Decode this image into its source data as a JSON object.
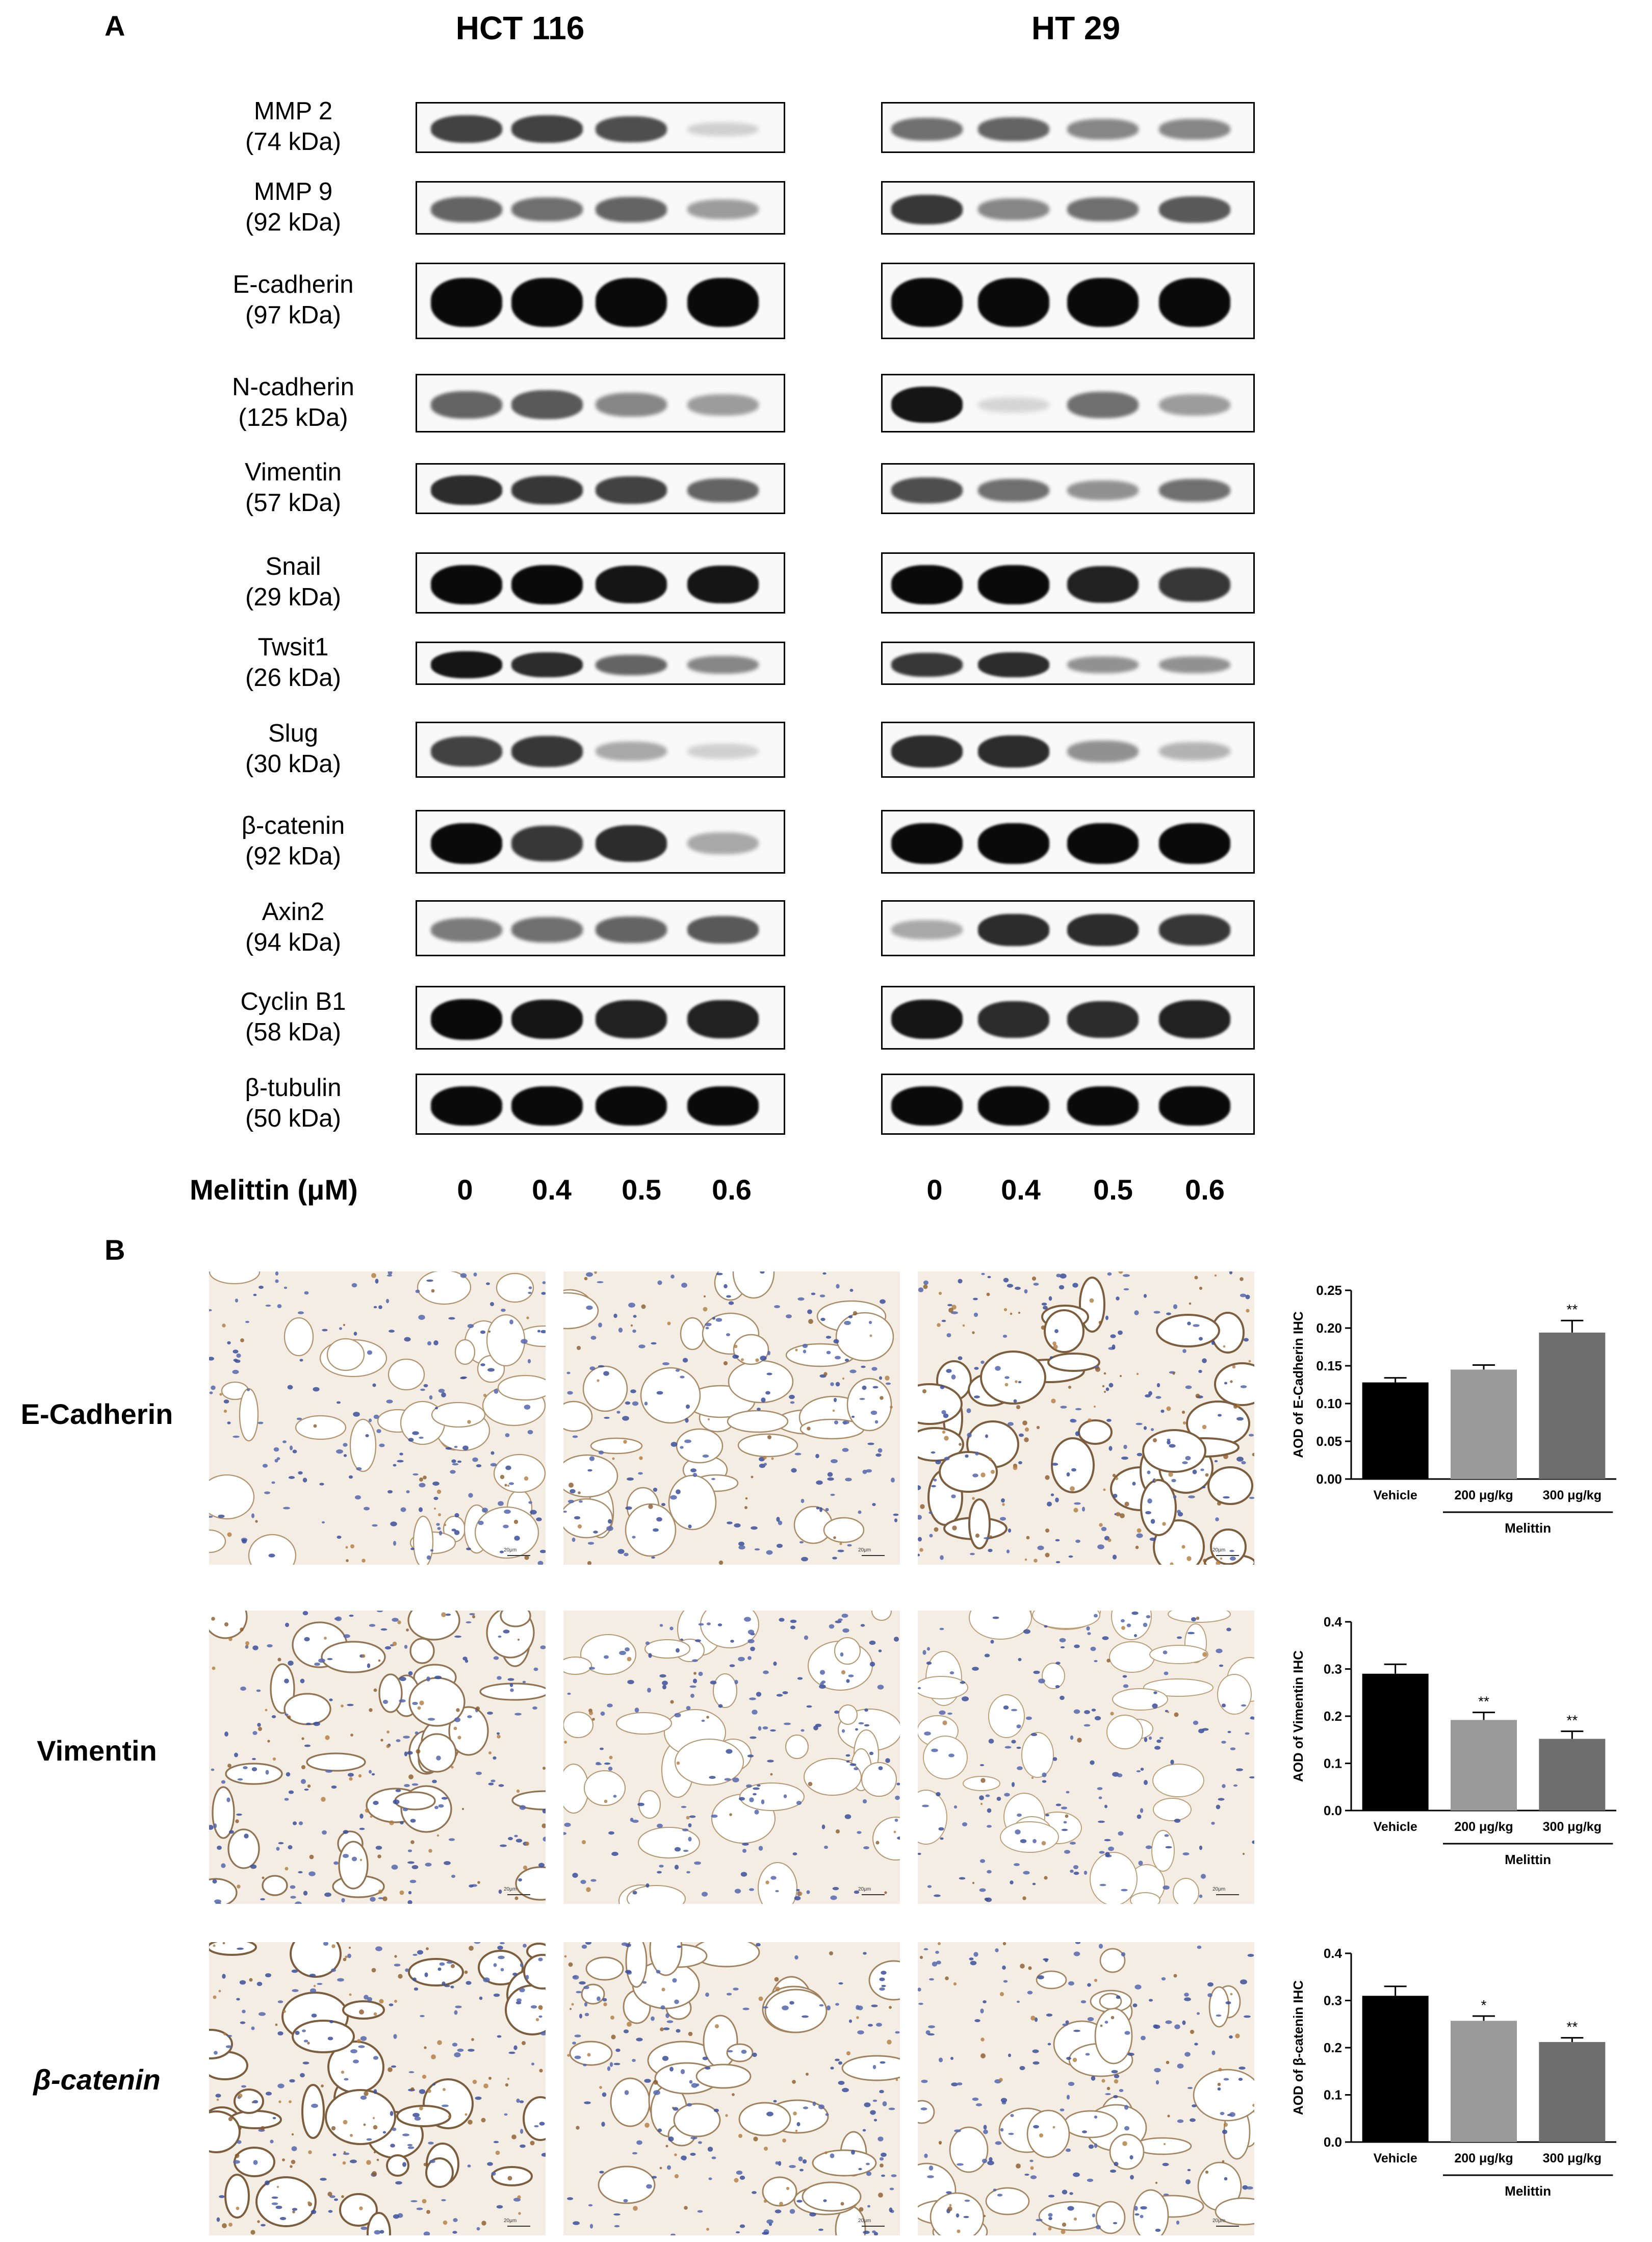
{
  "panel_a": {
    "letter": "A",
    "cell_lines": [
      "HCT 116",
      "HT 29"
    ],
    "treatment_label": "Melittin (μM)",
    "doses": [
      "0",
      "0.4",
      "0.5",
      "0.6"
    ],
    "rows": [
      {
        "name": "MMP 2",
        "kda": "(74 kDa)",
        "hct": [
          0.75,
          0.75,
          0.7,
          0.12
        ],
        "ht": [
          0.55,
          0.6,
          0.45,
          0.45
        ]
      },
      {
        "name": "MMP 9",
        "kda": "(92 kDa)",
        "hct": [
          0.6,
          0.55,
          0.6,
          0.35
        ],
        "ht": [
          0.8,
          0.45,
          0.55,
          0.65
        ]
      },
      {
        "name": "E-cadherin",
        "kda": "(97 kDa)",
        "hct": [
          1.0,
          1.0,
          1.0,
          1.0
        ],
        "ht": [
          1.0,
          1.0,
          1.0,
          1.0
        ]
      },
      {
        "name": "N-cadherin",
        "kda": "(125 kDa)",
        "hct": [
          0.6,
          0.65,
          0.45,
          0.35
        ],
        "ht": [
          0.95,
          0.1,
          0.55,
          0.35
        ]
      },
      {
        "name": "Vimentin",
        "kda": "(57 kDa)",
        "hct": [
          0.85,
          0.8,
          0.75,
          0.6
        ],
        "ht": [
          0.7,
          0.55,
          0.4,
          0.55
        ]
      },
      {
        "name": "Snail",
        "kda": "(29 kDa)",
        "hct": [
          1.0,
          1.0,
          0.95,
          0.95
        ],
        "ht": [
          1.0,
          1.0,
          0.9,
          0.8
        ]
      },
      {
        "name": "Twsit1",
        "kda": "(26 kDa)",
        "hct": [
          0.95,
          0.85,
          0.6,
          0.45
        ],
        "ht": [
          0.8,
          0.85,
          0.4,
          0.4
        ]
      },
      {
        "name": "Slug",
        "kda": "(30 kDa)",
        "hct": [
          0.75,
          0.8,
          0.3,
          0.12
        ],
        "ht": [
          0.85,
          0.85,
          0.4,
          0.25
        ]
      },
      {
        "name": "β-catenin",
        "kda": "(92 kDa)",
        "hct": [
          1.0,
          0.8,
          0.85,
          0.3
        ],
        "ht": [
          1.0,
          1.0,
          1.0,
          1.0
        ]
      },
      {
        "name": "Axin2",
        "kda": "(94 kDa)",
        "hct": [
          0.5,
          0.55,
          0.6,
          0.65
        ],
        "ht": [
          0.3,
          0.85,
          0.85,
          0.8
        ]
      },
      {
        "name": "Cyclin B1",
        "kda": "(58 kDa)",
        "hct": [
          1.0,
          0.95,
          0.9,
          0.9
        ],
        "ht": [
          0.95,
          0.85,
          0.85,
          0.9
        ]
      },
      {
        "name": "β-tubulin",
        "kda": "(50 kDa)",
        "hct": [
          1.0,
          1.0,
          1.0,
          1.0
        ],
        "ht": [
          1.0,
          1.0,
          1.0,
          1.0
        ]
      }
    ]
  },
  "panel_b": {
    "letter": "B",
    "stains": [
      "E-Cadherin",
      "Vimentin",
      "β-catenin"
    ],
    "scale_bar": "20μm"
  },
  "chart_data": [
    {
      "type": "bar",
      "ylabel": "AOD of E-Cadherin IHC",
      "categories": [
        "Vehicle",
        "200 μg/kg",
        "300 μg/kg"
      ],
      "group_label": "Melittin",
      "values": [
        0.128,
        0.145,
        0.194
      ],
      "errors": [
        0.006,
        0.006,
        0.016
      ],
      "significance": [
        "",
        "",
        "**"
      ],
      "ylim": [
        0,
        0.25
      ],
      "yticks": [
        "0.00",
        "0.05",
        "0.10",
        "0.15",
        "0.20",
        "0.25"
      ],
      "colors": [
        "#000000",
        "#9a9a9a",
        "#6e6e6e"
      ]
    },
    {
      "type": "bar",
      "ylabel": "AOD of Vimentin IHC",
      "categories": [
        "Vehicle",
        "200 μg/kg",
        "300 μg/kg"
      ],
      "group_label": "Melittin",
      "values": [
        0.29,
        0.192,
        0.152
      ],
      "errors": [
        0.02,
        0.016,
        0.016
      ],
      "significance": [
        "",
        "**",
        "**"
      ],
      "ylim": [
        0,
        0.4
      ],
      "yticks": [
        "0.0",
        "0.1",
        "0.2",
        "0.3",
        "0.4"
      ],
      "colors": [
        "#000000",
        "#9a9a9a",
        "#6e6e6e"
      ]
    },
    {
      "type": "bar",
      "ylabel": "AOD of β-catenin IHC",
      "categories": [
        "Vehicle",
        "200 μg/kg",
        "300 μg/kg"
      ],
      "group_label": "Melittin",
      "values": [
        0.31,
        0.257,
        0.212
      ],
      "errors": [
        0.02,
        0.01,
        0.009
      ],
      "significance": [
        "",
        "*",
        "**"
      ],
      "ylim": [
        0,
        0.4
      ],
      "yticks": [
        "0.0",
        "0.1",
        "0.2",
        "0.3",
        "0.4"
      ],
      "colors": [
        "#000000",
        "#9a9a9a",
        "#6e6e6e"
      ]
    }
  ]
}
